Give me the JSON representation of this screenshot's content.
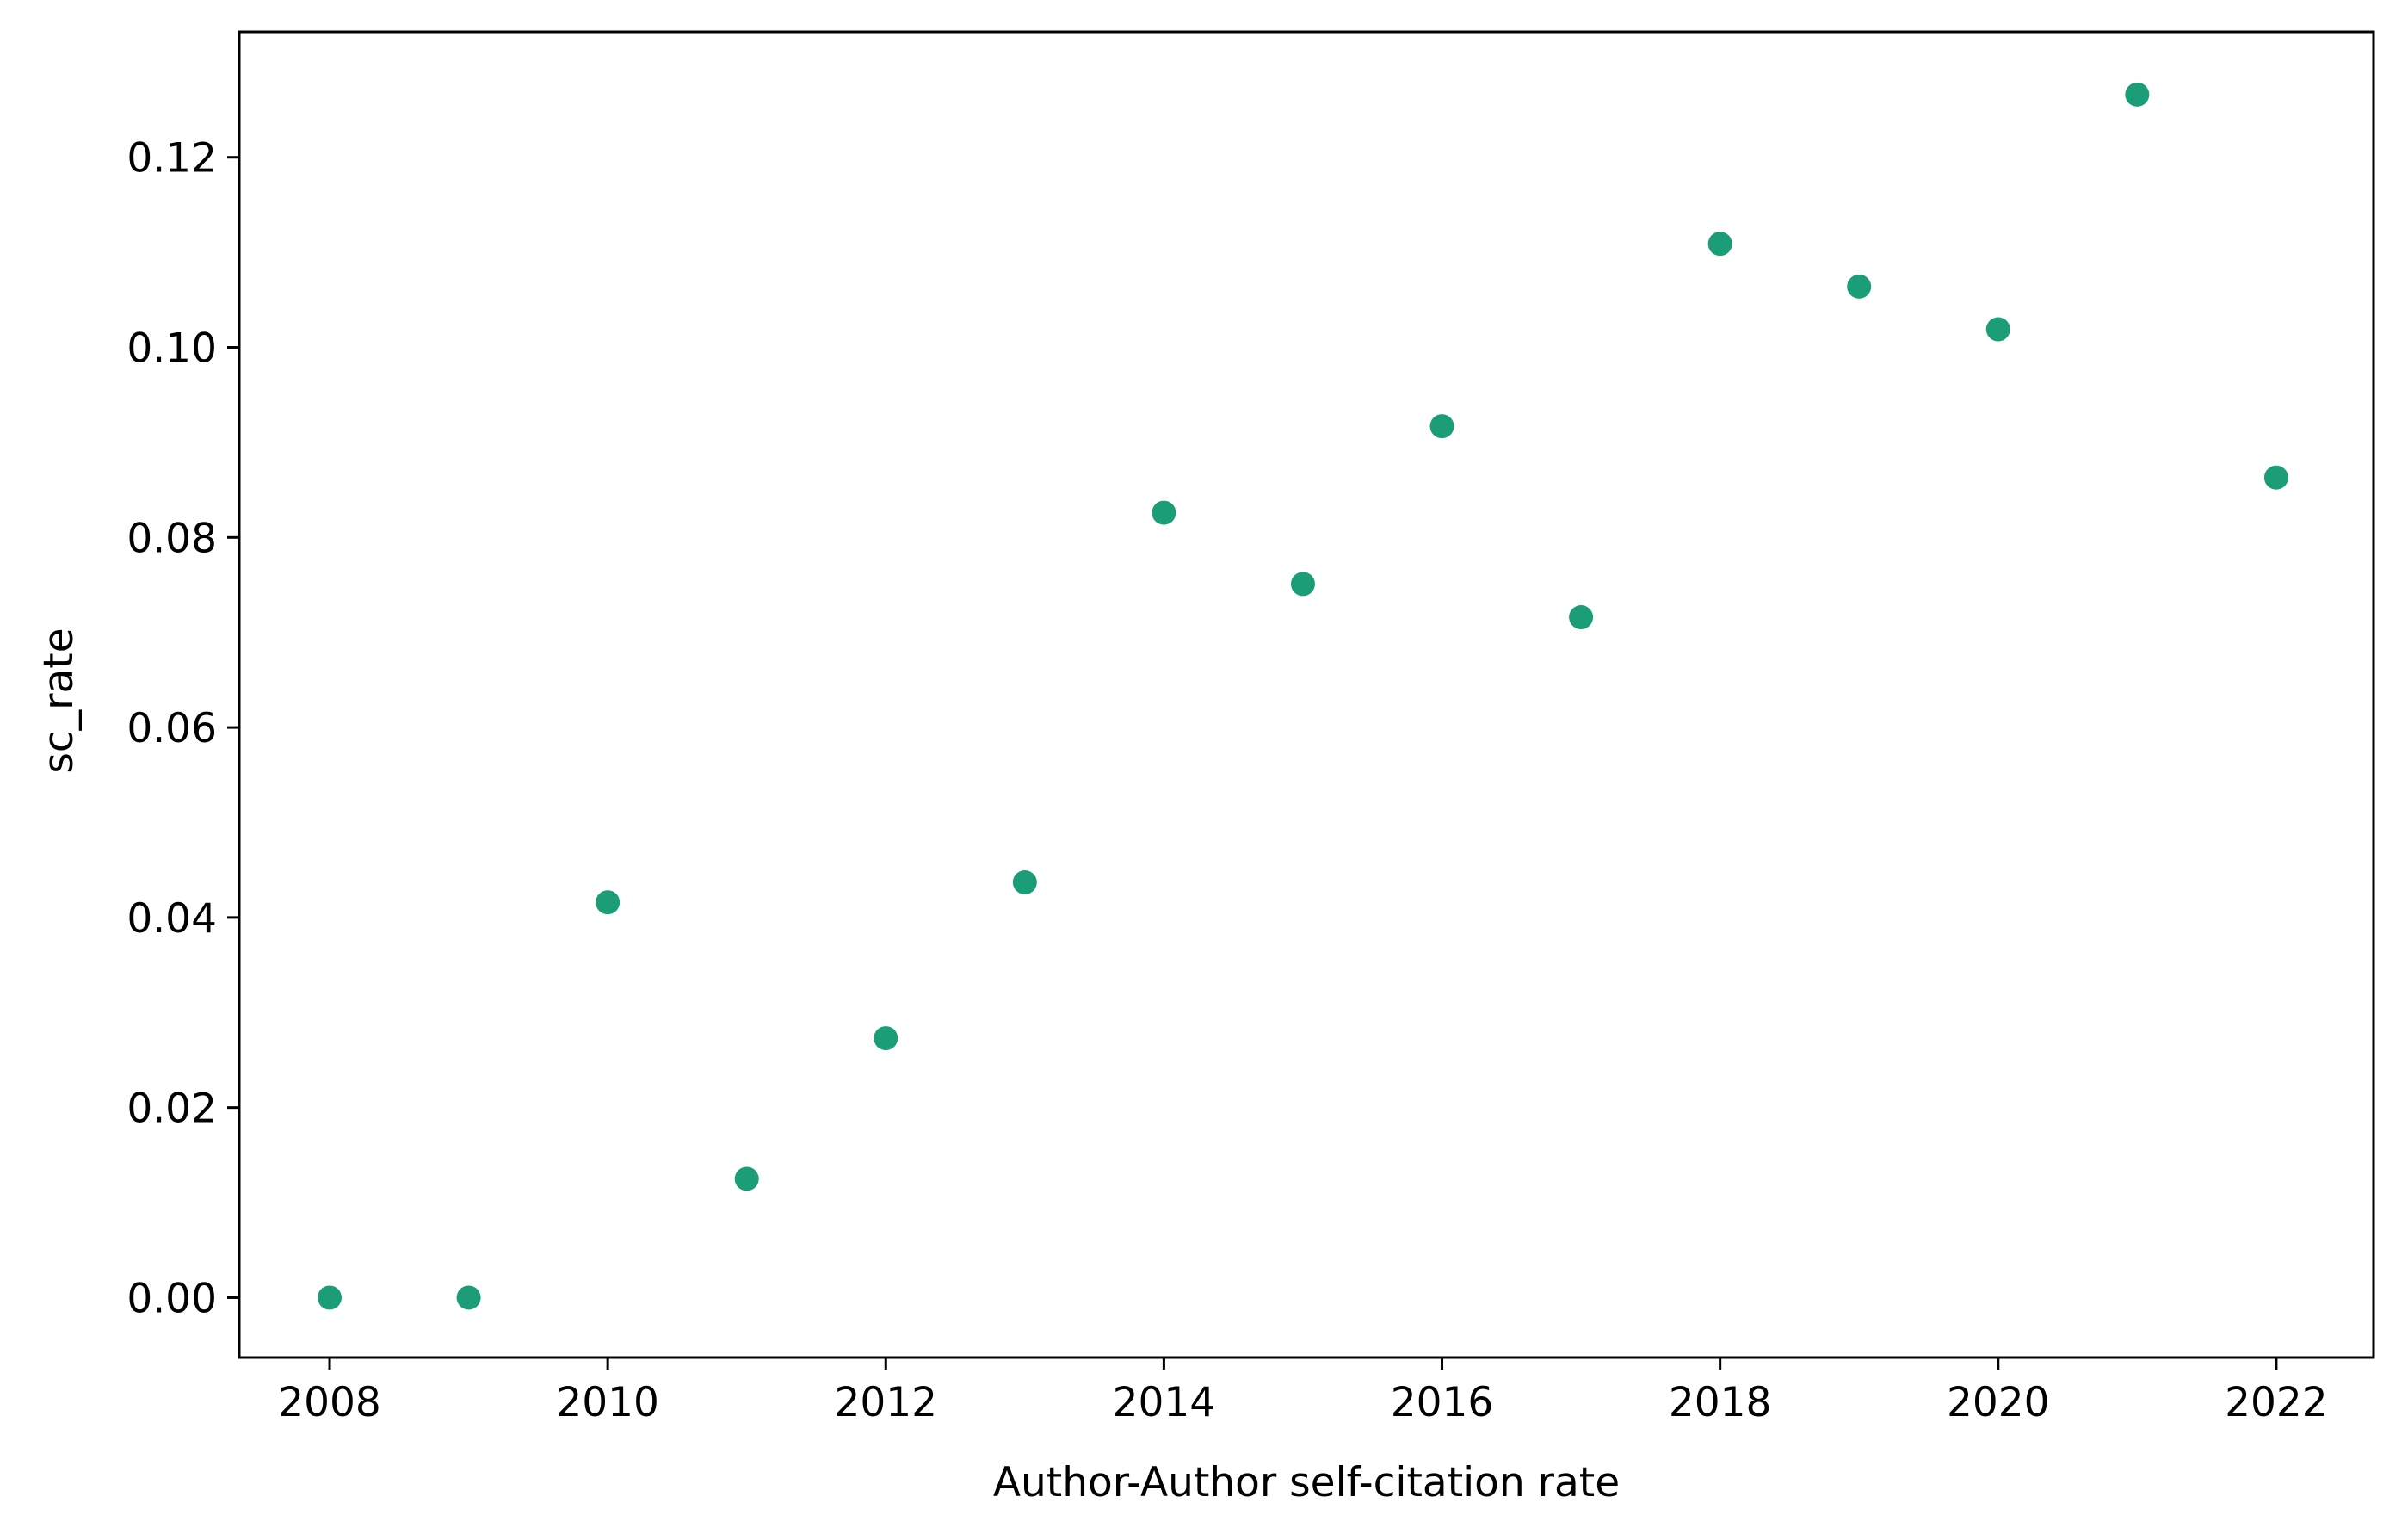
{
  "chart_data": {
    "type": "scatter",
    "title": "",
    "xlabel": "Author-Author self-citation rate",
    "ylabel": "sc_rate",
    "xlim": [
      2007.35,
      2022.7
    ],
    "ylim": [
      -0.0063,
      0.1332
    ],
    "xticks": [
      2008,
      2010,
      2012,
      2014,
      2016,
      2018,
      2020,
      2022
    ],
    "xtick_labels": [
      "2008",
      "2010",
      "2012",
      "2014",
      "2016",
      "2018",
      "2020",
      "2022"
    ],
    "yticks": [
      0.0,
      0.02,
      0.04,
      0.06,
      0.08,
      0.1,
      0.12
    ],
    "ytick_labels": [
      "0.00",
      "0.02",
      "0.04",
      "0.06",
      "0.08",
      "0.10",
      "0.12"
    ],
    "grid": false,
    "legend": "none",
    "marker_color": "#1b9e77",
    "series": [
      {
        "x": [
          2008,
          2009,
          2010,
          2011,
          2012,
          2013,
          2014,
          2015,
          2016,
          2017,
          2018,
          2019,
          2020,
          2021,
          2022
        ],
        "y": [
          0.0,
          0.0,
          0.0416,
          0.0125,
          0.0273,
          0.0437,
          0.0826,
          0.0751,
          0.0917,
          0.0716,
          0.1109,
          0.1064,
          0.1019,
          0.1266,
          0.0863
        ]
      }
    ]
  }
}
